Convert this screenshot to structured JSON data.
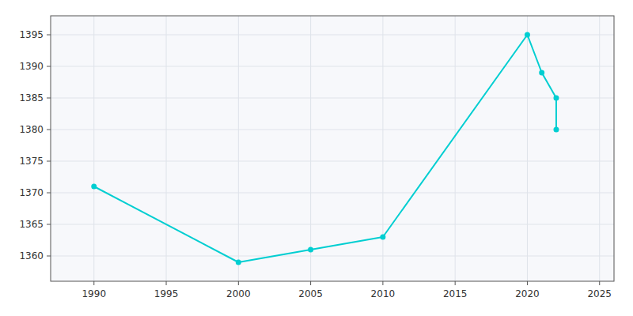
{
  "chart_data": {
    "type": "line",
    "x": [
      1990,
      2000,
      2005,
      2010,
      2020,
      2021,
      2022,
      2022
    ],
    "values": [
      1371,
      1359,
      1361,
      1363,
      1395,
      1389,
      1385,
      1380
    ],
    "color": "#00CED1",
    "marker": "circle",
    "xlim": [
      1987,
      2026
    ],
    "ylim": [
      1356,
      1398
    ],
    "xticks": [
      1990,
      1995,
      2000,
      2005,
      2010,
      2015,
      2020,
      2025
    ],
    "yticks": [
      1360,
      1365,
      1370,
      1375,
      1380,
      1385,
      1390,
      1395
    ],
    "grid": true
  }
}
